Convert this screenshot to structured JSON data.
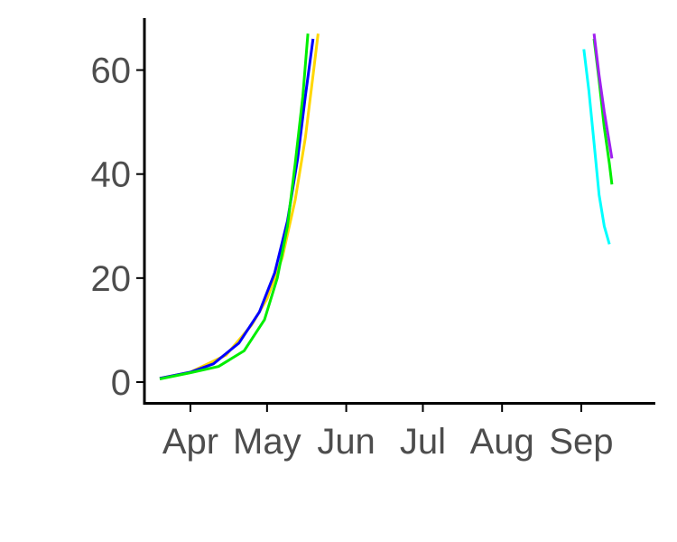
{
  "chart_data": {
    "type": "line",
    "title": "",
    "xlabel": "",
    "ylabel": "",
    "xlim": [
      "2020-03-14",
      "2020-09-30"
    ],
    "ylim": [
      -4,
      70
    ],
    "grid": false,
    "x_ticks": [
      {
        "date": "2020-04-01",
        "label": "Apr"
      },
      {
        "date": "2020-05-01",
        "label": "May"
      },
      {
        "date": "2020-06-01",
        "label": "Jun"
      },
      {
        "date": "2020-07-01",
        "label": "Jul"
      },
      {
        "date": "2020-08-01",
        "label": "Aug"
      },
      {
        "date": "2020-09-01",
        "label": "Sep"
      }
    ],
    "y_ticks": [
      0,
      20,
      40,
      60
    ],
    "series": [
      {
        "color": "#ffd700",
        "points": [
          [
            "2020-03-20",
            0.7
          ],
          [
            "2020-04-01",
            1.9
          ],
          [
            "2020-04-15",
            5.2
          ],
          [
            "2020-04-25",
            11.0
          ],
          [
            "2020-05-01",
            16.0
          ],
          [
            "2020-05-07",
            24.0
          ],
          [
            "2020-05-12",
            35.0
          ],
          [
            "2020-05-16",
            47.0
          ],
          [
            "2020-05-19",
            59.0
          ],
          [
            "2020-05-21",
            67.0
          ]
        ]
      },
      {
        "color": "#0000ff",
        "points": [
          [
            "2020-03-20",
            0.7
          ],
          [
            "2020-04-01",
            1.9
          ],
          [
            "2020-04-10",
            3.5
          ],
          [
            "2020-04-20",
            7.5
          ],
          [
            "2020-04-28",
            13.5
          ],
          [
            "2020-05-04",
            21.0
          ],
          [
            "2020-05-09",
            31.0
          ],
          [
            "2020-05-13",
            43.0
          ],
          [
            "2020-05-16",
            55.0
          ],
          [
            "2020-05-19",
            66.0
          ]
        ]
      },
      {
        "color": "#00ee00",
        "points": [
          [
            "2020-03-20",
            0.6
          ],
          [
            "2020-04-01",
            1.8
          ],
          [
            "2020-04-12",
            3.0
          ],
          [
            "2020-04-22",
            6.0
          ],
          [
            "2020-04-30",
            12.0
          ],
          [
            "2020-05-05",
            20.0
          ],
          [
            "2020-05-09",
            30.0
          ],
          [
            "2020-05-12",
            42.0
          ],
          [
            "2020-05-15",
            55.0
          ],
          [
            "2020-05-17",
            67.0
          ]
        ]
      },
      {
        "color": "#00ffff",
        "points": [
          [
            "2020-09-02",
            64.0
          ],
          [
            "2020-09-04",
            56.0
          ],
          [
            "2020-09-06",
            46.0
          ],
          [
            "2020-09-08",
            36.0
          ],
          [
            "2020-09-10",
            30.0
          ],
          [
            "2020-09-12",
            26.5
          ]
        ]
      },
      {
        "color": "#00ee00",
        "points": [
          [
            "2020-09-06",
            66.0
          ],
          [
            "2020-09-08",
            58.0
          ],
          [
            "2020-09-10",
            49.0
          ],
          [
            "2020-09-12",
            42.0
          ],
          [
            "2020-09-13",
            38.0
          ]
        ]
      },
      {
        "color": "#a020f0",
        "points": [
          [
            "2020-09-06",
            67.0
          ],
          [
            "2020-09-08",
            59.0
          ],
          [
            "2020-09-10",
            52.0
          ],
          [
            "2020-09-12",
            46.0
          ],
          [
            "2020-09-13",
            43.0
          ]
        ]
      }
    ]
  }
}
